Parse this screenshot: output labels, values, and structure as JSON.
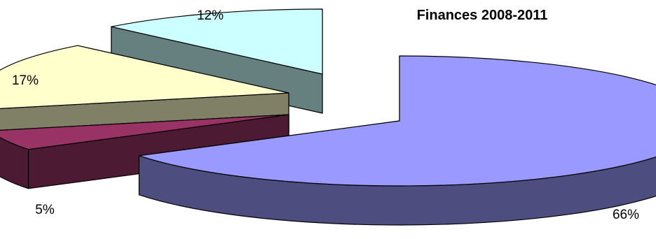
{
  "chart_data": {
    "type": "pie",
    "style": "3d-exploded",
    "title": "Finances 2008-2011",
    "legend": "none",
    "slices": [
      {
        "value": 66,
        "label": "66%",
        "color": "#9999FF",
        "side_color": "#4D4D80"
      },
      {
        "value": 5,
        "label": "5%",
        "color": "#993366",
        "side_color": "#4D1A33"
      },
      {
        "value": 17,
        "label": "17%",
        "color": "#FFFFCC",
        "side_color": "#808066"
      },
      {
        "value": 12,
        "label": "12%",
        "color": "#CCFFFF",
        "side_color": "#668080"
      }
    ]
  }
}
